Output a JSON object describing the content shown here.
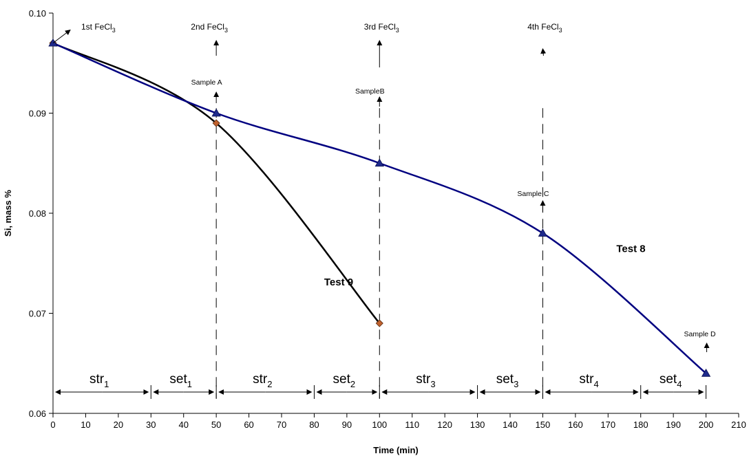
{
  "chart_data": {
    "type": "line",
    "xlabel": "Time (min)",
    "ylabel": "Si,  mass %",
    "xlim": [
      0,
      210
    ],
    "ylim": [
      0.06,
      0.1
    ],
    "x_ticks": [
      "0",
      "10",
      "20",
      "30",
      "40",
      "50",
      "60",
      "70",
      "80",
      "90",
      "100",
      "110",
      "120",
      "130",
      "140",
      "150",
      "160",
      "170",
      "180",
      "190",
      "200",
      "210"
    ],
    "y_ticks": [
      "0.06",
      "0.07",
      "0.08",
      "0.09",
      "0.10"
    ],
    "grid": false,
    "series": [
      {
        "name": "Test 9",
        "x": [
          0,
          50,
          100
        ],
        "y": [
          0.097,
          0.089,
          0.069
        ],
        "color": "#000000",
        "marker": "diamond",
        "marker_color": "#c0622e"
      },
      {
        "name": "Test 8",
        "x": [
          0,
          50,
          100,
          150,
          200
        ],
        "y": [
          0.097,
          0.09,
          0.085,
          0.078,
          0.064
        ],
        "color": "#000080",
        "marker": "triangle",
        "marker_color": "#1f2a8c"
      }
    ],
    "additions": [
      {
        "x": 0,
        "pre": "1st FeCl",
        "sub": "3"
      },
      {
        "x": 50,
        "pre": "2nd FeCl",
        "sub": "3"
      },
      {
        "x": 100,
        "pre": "3rd FeCl",
        "sub": "3"
      },
      {
        "x": 150,
        "pre": "4th FeCl",
        "sub": "3"
      }
    ],
    "samples": [
      {
        "x": 50,
        "label": "Sample A"
      },
      {
        "x": 100,
        "label": "SampleB"
      },
      {
        "x": 150,
        "label": "Sample C"
      },
      {
        "x": 200,
        "label": "Sample D"
      }
    ],
    "intervals": [
      {
        "from": 0,
        "to": 30,
        "base": "str",
        "sub": "1"
      },
      {
        "from": 30,
        "to": 50,
        "base": "set",
        "sub": "1"
      },
      {
        "from": 50,
        "to": 80,
        "base": "str",
        "sub": "2"
      },
      {
        "from": 80,
        "to": 100,
        "base": "set",
        "sub": "2"
      },
      {
        "from": 100,
        "to": 130,
        "base": "str",
        "sub": "3"
      },
      {
        "from": 130,
        "to": 150,
        "base": "set",
        "sub": "3"
      },
      {
        "from": 150,
        "to": 180,
        "base": "str",
        "sub": "4"
      },
      {
        "from": 180,
        "to": 200,
        "base": "set",
        "sub": "4"
      }
    ]
  }
}
